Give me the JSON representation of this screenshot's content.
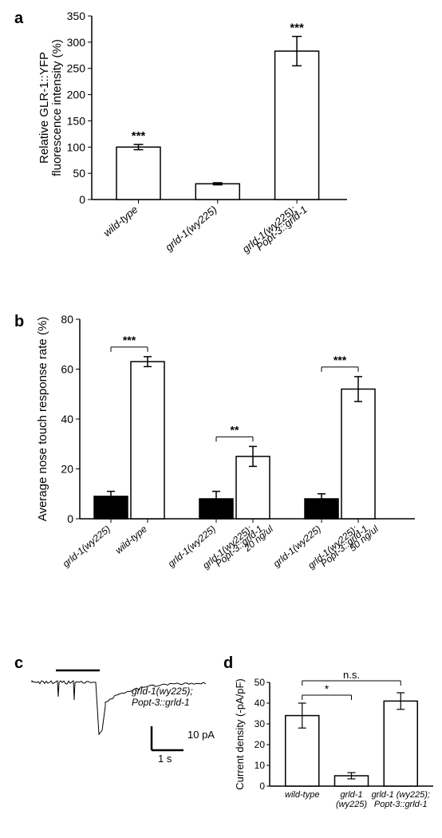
{
  "panelA": {
    "label": "a",
    "type": "bar",
    "ylabel": "Relative GLR-1::YFP\nfluorescence intensity (%)",
    "categories": [
      "wild-type",
      "grld-1(wy225)",
      "grld-1(wy225);\nPopt-3::grld-1"
    ],
    "values": [
      100,
      30,
      283
    ],
    "errors": [
      5,
      2,
      28
    ],
    "sig": [
      "***",
      "",
      "***"
    ],
    "ylim": [
      0,
      350
    ],
    "ytick_step": 50,
    "bar_fill": "#ffffff",
    "bar_stroke": "#000000",
    "label_fontsize": 15,
    "tick_fontsize": 14
  },
  "panelB": {
    "label": "b",
    "type": "bar",
    "ylabel": "Average nose touch response rate (%)",
    "ylim": [
      0,
      80
    ],
    "ytick_step": 20,
    "groups": [
      {
        "labels": [
          "grld-1(wy225)",
          "wild-type"
        ],
        "values": [
          9,
          63
        ],
        "errors": [
          2,
          2
        ],
        "fills": [
          "#000000",
          "#ffffff"
        ],
        "sig": "***"
      },
      {
        "labels": [
          "grld-1(wy225)",
          "grld-1(wy225);\nPopt-3::grld-1\n20 ng/ul"
        ],
        "values": [
          8,
          25
        ],
        "errors": [
          3,
          4
        ],
        "fills": [
          "#000000",
          "#ffffff"
        ],
        "sig": "**"
      },
      {
        "labels": [
          "grld-1(wy225)",
          "grld-1(wy225);\nPopt-3::grld-1\n50 ng/ul"
        ],
        "values": [
          8,
          52
        ],
        "errors": [
          2,
          5
        ],
        "fills": [
          "#000000",
          "#ffffff"
        ],
        "sig": "***"
      }
    ],
    "label_fontsize": 15,
    "tick_fontsize": 14
  },
  "panelC": {
    "label": "c",
    "type": "trace",
    "trace_label": "grld-1(wy225);\nPopt-3::grld-1",
    "scale_y": "10 pA",
    "scale_x": "1 s",
    "trace_color": "#000000"
  },
  "panelD": {
    "label": "d",
    "type": "bar",
    "ylabel": "Current density (-pA/pF)",
    "categories": [
      "wild-type",
      "grld-1\n(wy225)",
      "grld-1 (wy225);\nPopt-3::grld-1"
    ],
    "values": [
      34,
      5,
      41
    ],
    "errors": [
      6,
      1.5,
      4
    ],
    "sig_pairs": [
      {
        "from": 0,
        "to": 1,
        "label": "*"
      },
      {
        "from": 0,
        "to": 2,
        "label": "n.s."
      }
    ],
    "ylim": [
      0,
      50
    ],
    "ytick_step": 10,
    "bar_fill": "#ffffff",
    "bar_stroke": "#000000",
    "label_fontsize": 15,
    "tick_fontsize": 12
  }
}
